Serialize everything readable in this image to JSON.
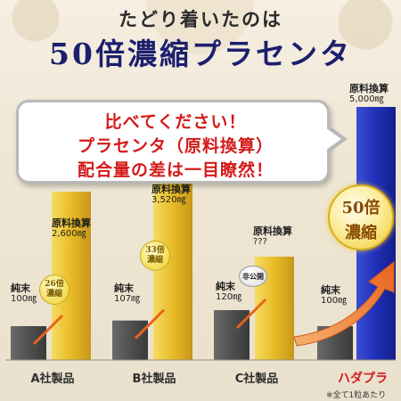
{
  "header": {
    "headline": "たどり着いたのは",
    "product_title": "50倍濃縮プラセンタ"
  },
  "callout": {
    "line1": "比べてください！",
    "line2": "プラセンタ（原料換算）",
    "line3": "配合量の差は一目瞭然！"
  },
  "colors": {
    "pure_bar": "#555555",
    "raw_bar": "#e2b623",
    "hadapura_bar": "#1f2fb8",
    "accent_red": "#d41a1a",
    "arrow": "#e8641c"
  },
  "chart_data": {
    "type": "bar",
    "unit": "mg",
    "categories": [
      "A社製品",
      "B社製品",
      "C社製品",
      "ハダプラ"
    ],
    "series": [
      {
        "name": "純末",
        "values": [
          100,
          107,
          120,
          100
        ],
        "labels": [
          "100㎎",
          "107㎎",
          "120㎎",
          "100㎎"
        ]
      },
      {
        "name": "原料換算",
        "values": [
          2600,
          3520,
          null,
          5000
        ],
        "labels": [
          "2,600㎎",
          "3,520㎎",
          "???",
          "5,000㎎"
        ]
      }
    ],
    "ratios": [
      [
        "26倍",
        "濃縮"
      ],
      [
        "33倍",
        "濃縮"
      ],
      [
        "非公開"
      ],
      [
        "50倍",
        "濃縮"
      ]
    ],
    "footnote": "※全て1粒あたり"
  }
}
